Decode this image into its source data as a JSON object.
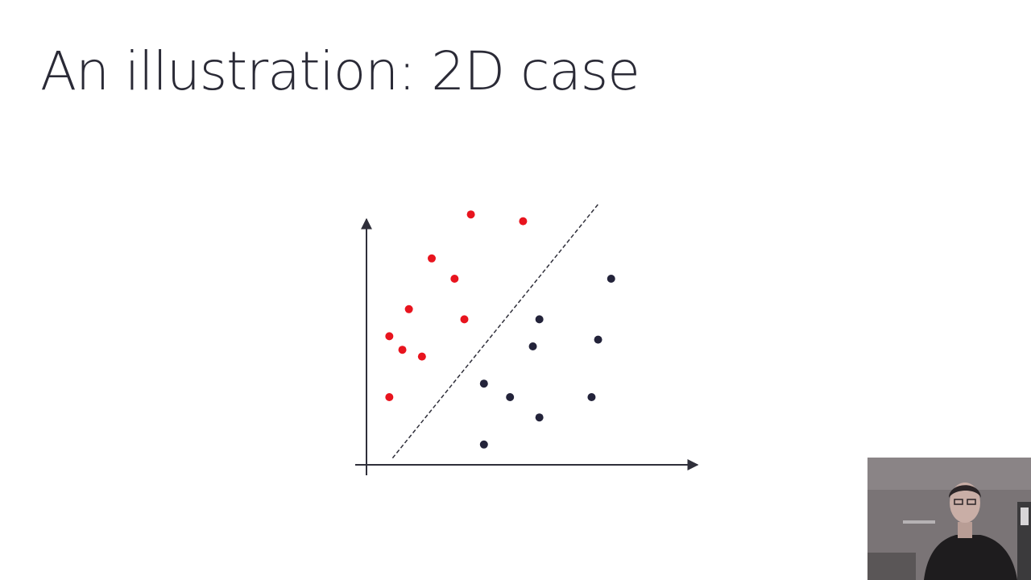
{
  "slide": {
    "title": "An illustration: 2D case"
  },
  "chart_data": {
    "type": "scatter",
    "title": "",
    "xlabel": "",
    "ylabel": "",
    "xlim": [
      0,
      10
    ],
    "ylim": [
      0,
      7.5
    ],
    "grid": false,
    "legend": "none",
    "series": [
      {
        "color": "#e8141e",
        "points": [
          [
            3.2,
            7.4
          ],
          [
            4.8,
            7.2
          ],
          [
            2.0,
            6.1
          ],
          [
            2.7,
            5.5
          ],
          [
            1.3,
            4.6
          ],
          [
            3.0,
            4.3
          ],
          [
            0.7,
            3.8
          ],
          [
            1.1,
            3.4
          ],
          [
            1.7,
            3.2
          ],
          [
            0.7,
            2.0
          ]
        ]
      },
      {
        "color": "#23233a",
        "points": [
          [
            7.5,
            5.5
          ],
          [
            5.3,
            4.3
          ],
          [
            5.1,
            3.5
          ],
          [
            7.1,
            3.7
          ],
          [
            3.6,
            2.4
          ],
          [
            4.4,
            2.0
          ],
          [
            5.3,
            1.4
          ],
          [
            6.9,
            2.0
          ],
          [
            3.6,
            0.6
          ]
        ]
      }
    ],
    "decision_boundary": {
      "style": "dashed",
      "from": [
        0.8,
        0.2
      ],
      "to": [
        7.1,
        7.7
      ]
    }
  },
  "webcam": {
    "description": "presenter"
  }
}
